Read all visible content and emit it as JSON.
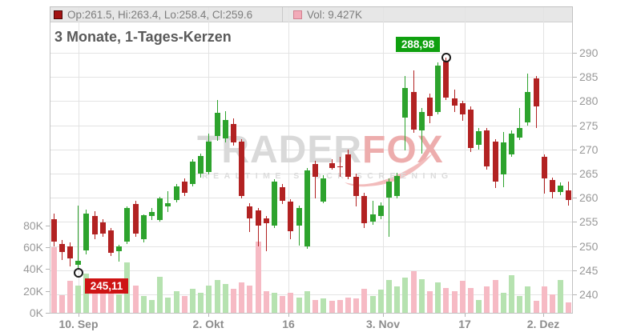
{
  "title": "3 Monate, 1-Tages-Kerzen",
  "legend": {
    "ohlc_marker_color": "#a31212",
    "ohlc_text": "Op:261.5, Hi:263.4, Lo:258.4, Cl:259.6",
    "vol_marker_color": "#f2aab8",
    "vol_text": "Vol: 9.427K"
  },
  "watermark": {
    "brand_gray": "TRADER",
    "brand_red": "FOX",
    "tagline": "REALTIME STOCK SCREENING"
  },
  "chart_data": {
    "type": "candlestick",
    "title": "3 Monate, 1-Tages-Kerzen",
    "period": "3 Monate",
    "interval": "1-Tages-Kerzen",
    "price_axis": {
      "side": "right",
      "min": 240,
      "max": 290,
      "step": 5,
      "ticks": [
        240,
        245,
        250,
        255,
        260,
        265,
        270,
        275,
        280,
        285,
        290
      ]
    },
    "volume_axis": {
      "side": "left",
      "unit": "K",
      "ticks": [
        0,
        20,
        40,
        60,
        80
      ],
      "labels": [
        "0K",
        "20K",
        "40K",
        "60K",
        "80K"
      ]
    },
    "x_axis": {
      "labels": [
        {
          "text": "10. Sep",
          "pos": 0.055
        },
        {
          "text": "2. Okt",
          "pos": 0.303
        },
        {
          "text": "16",
          "pos": 0.456
        },
        {
          "text": "3. Nov",
          "pos": 0.637
        },
        {
          "text": "17",
          "pos": 0.793
        },
        {
          "text": "2. Dez",
          "pos": 0.943
        }
      ]
    },
    "markers": {
      "high": {
        "index": 48,
        "value": 288.98,
        "label": "288,98"
      },
      "low": {
        "index": 3,
        "value": 245.11,
        "label": "245,11"
      }
    },
    "last_candle": {
      "open": 261.5,
      "high": 263.4,
      "low": 258.4,
      "close": 259.6,
      "volume": "9.427K"
    },
    "colors": {
      "up": "#2da32d",
      "down": "#b22222",
      "vol_up": "#b6e2b0",
      "vol_down": "#f6bac4",
      "grid": "#e3e3e3",
      "axis_text": "#999999",
      "high_badge": "#0fa00f",
      "low_badge": "#ce1313"
    },
    "candles": [
      [
        255.5,
        256.8,
        250.0,
        251.0,
        60
      ],
      [
        250.4,
        251.2,
        247.2,
        248.8,
        16
      ],
      [
        249.9,
        250.8,
        245.8,
        247.4,
        29
      ],
      [
        246.2,
        258.3,
        245.11,
        247.0,
        25
      ],
      [
        249.1,
        257.5,
        248.2,
        256.7,
        36
      ],
      [
        256.2,
        257.2,
        251.5,
        252.4,
        20
      ],
      [
        254.9,
        255.6,
        252.0,
        252.5,
        18
      ],
      [
        253.2,
        253.8,
        248.0,
        248.6,
        19
      ],
      [
        249.0,
        250.2,
        246.8,
        250.0,
        17
      ],
      [
        250.9,
        258.2,
        250.4,
        257.8,
        46
      ],
      [
        258.7,
        259.3,
        252.0,
        252.5,
        25
      ],
      [
        251.4,
        256.6,
        250.8,
        256.4,
        15
      ],
      [
        256.3,
        257.8,
        255.4,
        257.0,
        12
      ],
      [
        255.4,
        260.2,
        255.0,
        259.8,
        33
      ],
      [
        258.2,
        261.3,
        257.0,
        258.8,
        14
      ],
      [
        259.5,
        262.8,
        259.0,
        262.3,
        20
      ],
      [
        263.3,
        264.0,
        260.3,
        261.0,
        15
      ],
      [
        262.9,
        268.0,
        262.3,
        267.5,
        22
      ],
      [
        265.0,
        269.2,
        264.2,
        268.6,
        18
      ],
      [
        265.4,
        273.3,
        264.8,
        271.7,
        25
      ],
      [
        272.8,
        280.2,
        271.8,
        277.6,
        30
      ],
      [
        272.3,
        277.9,
        271.5,
        276.1,
        26
      ],
      [
        275.3,
        276.5,
        270.8,
        271.5,
        22
      ],
      [
        271.6,
        272.2,
        259.9,
        260.4,
        28
      ],
      [
        258.2,
        258.8,
        252.9,
        255.7,
        25
      ],
      [
        257.4,
        257.8,
        250.0,
        254.2,
        65
      ],
      [
        255.7,
        256.2,
        249.0,
        254.7,
        20
      ],
      [
        254.2,
        263.8,
        253.8,
        263.3,
        18
      ],
      [
        262.2,
        262.8,
        258.7,
        259.3,
        15
      ],
      [
        259.2,
        259.7,
        251.5,
        253.0,
        18
      ],
      [
        254.2,
        258.3,
        250.1,
        257.9,
        14
      ],
      [
        250.0,
        266.2,
        249.4,
        265.7,
        20
      ],
      [
        267.0,
        267.6,
        259.8,
        264.3,
        12
      ],
      [
        259.2,
        264.6,
        258.8,
        264.0,
        13
      ],
      [
        267.2,
        268.0,
        265.8,
        266.2,
        11
      ],
      [
        266.5,
        268.5,
        264.4,
        266.3,
        12
      ],
      [
        269.0,
        269.9,
        263.9,
        264.3,
        14
      ],
      [
        264.4,
        265.0,
        258.2,
        260.4,
        13
      ],
      [
        260.4,
        261.0,
        253.8,
        254.8,
        22
      ],
      [
        255.1,
        259.3,
        254.4,
        256.5,
        15
      ],
      [
        256.2,
        259.0,
        255.5,
        258.4,
        21
      ],
      [
        260.0,
        264.0,
        252.0,
        263.4,
        30
      ],
      [
        260.4,
        265.2,
        259.8,
        264.5,
        24
      ],
      [
        276.6,
        285.2,
        269.8,
        282.7,
        32
      ],
      [
        281.9,
        286.4,
        273.5,
        274.1,
        38
      ],
      [
        274.0,
        278.5,
        269.2,
        277.8,
        31
      ],
      [
        280.8,
        281.5,
        275.5,
        277.0,
        20
      ],
      [
        277.8,
        288.0,
        277.3,
        287.3,
        28
      ],
      [
        288.1,
        288.98,
        280.3,
        280.8,
        23
      ],
      [
        280.5,
        282.4,
        277.8,
        279.1,
        20
      ],
      [
        279.5,
        280.1,
        276.0,
        277.3,
        29
      ],
      [
        278.3,
        278.9,
        269.5,
        270.3,
        23
      ],
      [
        270.9,
        274.5,
        270.0,
        273.7,
        12
      ],
      [
        273.9,
        274.4,
        265.8,
        266.5,
        24
      ],
      [
        271.7,
        272.2,
        262.0,
        263.4,
        30
      ],
      [
        264.8,
        273.6,
        262.2,
        271.5,
        18
      ],
      [
        269.0,
        274.0,
        268.5,
        273.2,
        34
      ],
      [
        272.5,
        278.6,
        272.0,
        274.5,
        15
      ],
      [
        275.6,
        285.7,
        275.0,
        281.9,
        24
      ],
      [
        284.7,
        285.2,
        274.5,
        278.9,
        11
      ],
      [
        268.4,
        269.0,
        260.9,
        264.0,
        24
      ],
      [
        263.7,
        264.2,
        259.9,
        261.2,
        17
      ],
      [
        261.2,
        263.2,
        260.5,
        262.5,
        30
      ],
      [
        261.5,
        263.4,
        258.4,
        259.6,
        9.427
      ]
    ]
  }
}
